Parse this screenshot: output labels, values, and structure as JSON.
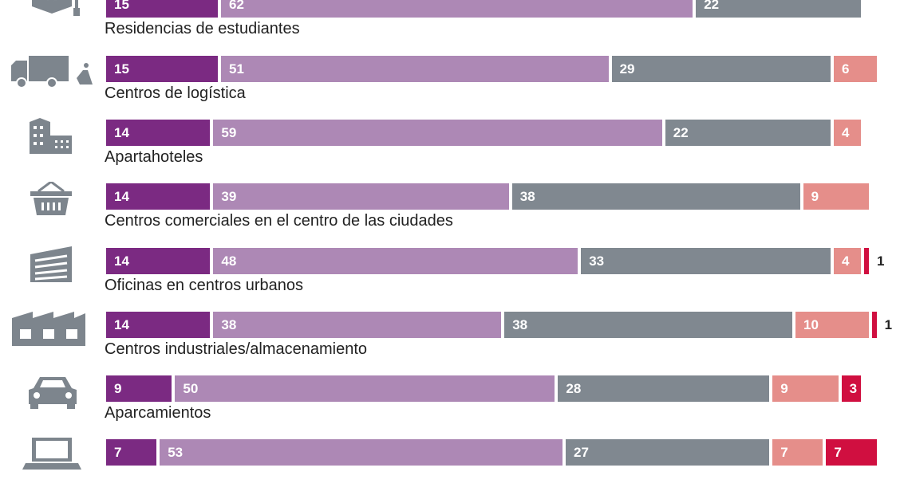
{
  "chart_data": {
    "type": "bar",
    "orientation": "horizontal",
    "stacked": true,
    "colors": [
      "#7b2a82",
      "#ad88b5",
      "#808890",
      "#e58e8a",
      "#d00f40"
    ],
    "rows": [
      {
        "label": "Residencias de estudiantes",
        "icon": "graduation-cap-icon",
        "values": [
          15,
          62,
          22
        ]
      },
      {
        "label": "Centros de logística",
        "icon": "truck-icon",
        "values": [
          15,
          51,
          29,
          6
        ]
      },
      {
        "label": "Apartahoteles",
        "icon": "building-icon",
        "values": [
          14,
          59,
          22,
          4
        ]
      },
      {
        "label": "Centros comerciales en el centro de las ciudades",
        "icon": "shopping-basket-icon",
        "values": [
          14,
          39,
          38,
          9
        ]
      },
      {
        "label": "Oficinas en centros urbanos",
        "icon": "office-building-icon",
        "values": [
          14,
          48,
          33,
          4,
          1
        ]
      },
      {
        "label": "Centros industriales/almacenamiento",
        "icon": "warehouse-icon",
        "values": [
          14,
          38,
          38,
          10,
          1
        ]
      },
      {
        "label": "Aparcamientos",
        "icon": "car-icon",
        "values": [
          9,
          50,
          28,
          9,
          3
        ]
      },
      {
        "label": "",
        "icon": "laptop-icon",
        "values": [
          7,
          53,
          27,
          7,
          7
        ]
      }
    ]
  }
}
